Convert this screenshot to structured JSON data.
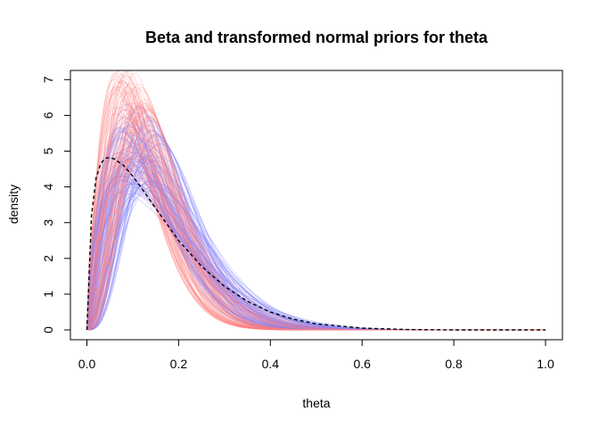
{
  "chart_data": {
    "type": "line",
    "title": "Beta and transformed normal priors for theta",
    "xlabel": "theta",
    "ylabel": "density",
    "xlim": [
      0,
      1
    ],
    "ylim": [
      0,
      7
    ],
    "x_ticks": [
      0.0,
      0.2,
      0.4,
      0.6,
      0.8,
      1.0
    ],
    "x_tick_labels": [
      "0.0",
      "0.2",
      "0.4",
      "0.6",
      "0.8",
      "1.0"
    ],
    "y_ticks": [
      0,
      1,
      2,
      3,
      4,
      5,
      6,
      7
    ],
    "y_tick_labels": [
      "0",
      "1",
      "2",
      "3",
      "4",
      "5",
      "6",
      "7"
    ],
    "grid": false,
    "legend": "none",
    "series": [
      {
        "style": "dashed",
        "color": "#000000",
        "x": [
          0.0,
          0.01,
          0.02,
          0.03,
          0.04,
          0.05,
          0.06,
          0.08,
          0.1,
          0.12,
          0.15,
          0.2,
          0.25,
          0.3,
          0.35,
          0.4,
          0.45,
          0.5,
          0.6,
          0.7,
          0.8,
          0.9,
          1.0
        ],
        "y": [
          0.0,
          3.2,
          4.25,
          4.65,
          4.8,
          4.82,
          4.78,
          4.6,
          4.3,
          3.95,
          3.4,
          2.5,
          1.78,
          1.22,
          0.8,
          0.5,
          0.3,
          0.17,
          0.05,
          0.01,
          0.0,
          0.0,
          0.0
        ]
      },
      {
        "style": "band",
        "color": "#8080ff",
        "count": 100,
        "peak_theta": [
          0.07,
          0.16
        ],
        "peak_density": [
          3.8,
          6.3
        ]
      },
      {
        "style": "band",
        "color": "#ff7f7f",
        "count": 100,
        "peak_theta": [
          0.06,
          0.14
        ],
        "peak_density": [
          4.2,
          7.3
        ]
      }
    ]
  }
}
